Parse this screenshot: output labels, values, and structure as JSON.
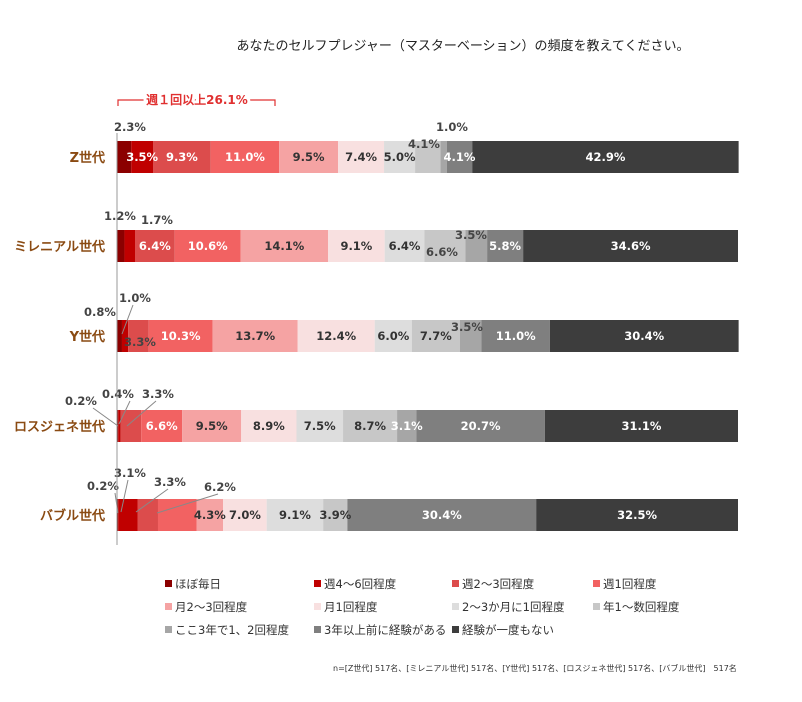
{
  "chart_data": {
    "type": "bar",
    "stacked": true,
    "orientation": "horizontal",
    "title": "あなたのセルフプレジャー（マスターベーション）の頻度を教えてください。",
    "categories": [
      "Z世代",
      "ミレニアル世代",
      "Y世代",
      "ロスジェネ世代",
      "バブル世代"
    ],
    "series": [
      {
        "name": "ほぼ毎日",
        "color": "#8b0000",
        "values": [
          2.3,
          1.2,
          0.8,
          0.2,
          0.2
        ]
      },
      {
        "name": "週4～6回程度",
        "color": "#c00000",
        "values": [
          3.5,
          1.7,
          1.0,
          0.4,
          3.1
        ]
      },
      {
        "name": "週2～3回程度",
        "color": "#dc4c4c",
        "values": [
          9.3,
          6.4,
          3.3,
          3.3,
          3.3
        ]
      },
      {
        "name": "週1回程度",
        "color": "#f26262",
        "values": [
          11.0,
          10.6,
          10.3,
          6.6,
          6.2
        ]
      },
      {
        "name": "月2～3回程度",
        "color": "#f5a3a3",
        "values": [
          9.5,
          14.1,
          13.7,
          9.5,
          4.3
        ]
      },
      {
        "name": "月1回程度",
        "color": "#f8e0e0",
        "values": [
          7.4,
          9.1,
          12.4,
          8.9,
          7.0
        ]
      },
      {
        "name": "2～3か月に1回程度",
        "color": "#dddddd",
        "values": [
          5.0,
          6.4,
          6.0,
          7.5,
          9.1
        ]
      },
      {
        "name": "年1～数回程度",
        "color": "#c7c7c7",
        "values": [
          4.1,
          6.6,
          7.7,
          8.7,
          3.9
        ]
      },
      {
        "name": "ここ3年で1、2回程度",
        "color": "#a6a6a6",
        "values": [
          1.0,
          3.5,
          3.5,
          3.1,
          0.0
        ]
      },
      {
        "name": "3年以上前に経験がある",
        "color": "#7f7f7f",
        "values": [
          4.1,
          5.8,
          11.0,
          20.7,
          30.4
        ]
      },
      {
        "name": "経験が一度もない",
        "color": "#3d3d3d",
        "values": [
          42.9,
          34.6,
          30.4,
          31.1,
          32.5
        ]
      }
    ],
    "xlim": [
      0,
      100
    ],
    "legend_position": "bottom",
    "annotation": "週１回以上26.1%",
    "footnote": "n=[Z世代] 517名、[ミレニアル世代] 517名、[Y世代] 517名、[ロスジェネ世代] 517名、[バブル世代]　517名"
  }
}
